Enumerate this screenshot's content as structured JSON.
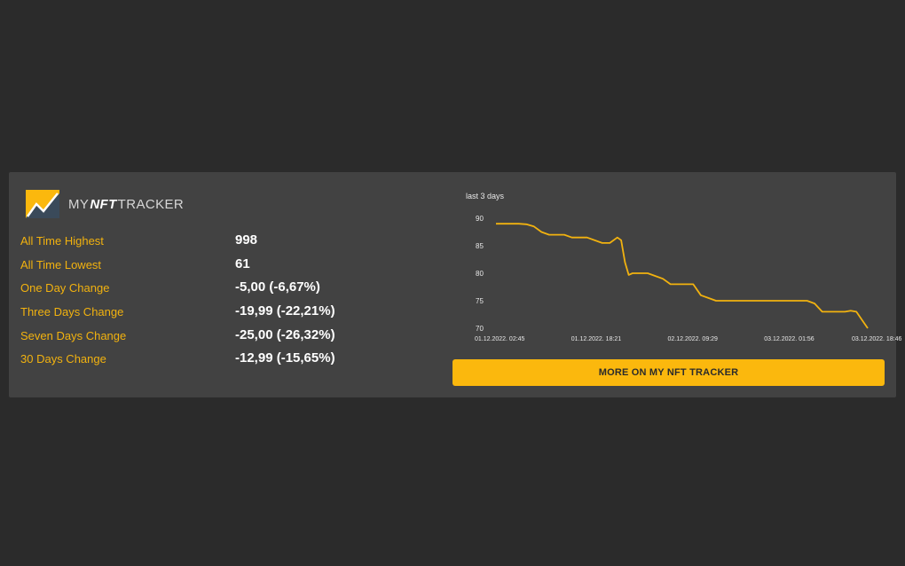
{
  "logo": {
    "prefix": "MY",
    "highlight": "NFT",
    "suffix": "TRACKER",
    "icon": "mountain-chart-logo-icon"
  },
  "stats": [
    {
      "label": "All Time Highest",
      "value": "998"
    },
    {
      "label": "All Time Lowest",
      "value": "61"
    },
    {
      "label": "One Day Change",
      "value": "-5,00 (-6,67%)"
    },
    {
      "label": "Three Days Change",
      "value": "-19,99 (-22,21%)"
    },
    {
      "label": "Seven Days Change",
      "value": "-25,00 (-26,32%)"
    },
    {
      "label": "30 Days Change",
      "value": "-12,99 (-15,65%)"
    }
  ],
  "cta": {
    "label": "MORE ON MY NFT TRACKER"
  },
  "colors": {
    "background": "#2b2b2b",
    "panel": "#424242",
    "accent": "#fbb80d",
    "label": "#f2b20f",
    "value": "#ffffff",
    "line": "#f2b20f"
  },
  "chart_data": {
    "type": "line",
    "title": "last 3 days",
    "x_tick_labels": [
      "01.12.2022. 02:45",
      "01.12.2022. 18:21",
      "02.12.2022. 09:29",
      "03.12.2022. 01:56",
      "03.12.2022. 18:46"
    ],
    "y_ticks": [
      90,
      85,
      80,
      75,
      70
    ],
    "ylim": [
      70,
      90
    ],
    "grid": false,
    "legend": "none",
    "series": [
      {
        "x": [
          0,
          4,
          6,
          8,
          10,
          12,
          14,
          16,
          18,
          20,
          24,
          28,
          30,
          32,
          33,
          34,
          35,
          36,
          38,
          40,
          42,
          44,
          46,
          48,
          50,
          52,
          54,
          56,
          58,
          60,
          62,
          64,
          70,
          76,
          80,
          82,
          84,
          86,
          88,
          90,
          92,
          93.5,
          95,
          96.5,
          98
        ],
        "y": [
          89,
          89,
          89,
          88.9,
          88.5,
          87.5,
          87,
          87,
          87,
          86.5,
          86.5,
          85.5,
          85.5,
          86.5,
          86,
          82,
          79.7,
          80,
          80,
          80,
          79.5,
          79,
          78,
          78,
          78,
          78,
          76,
          75.5,
          75,
          75,
          75,
          75,
          75,
          75,
          75,
          75,
          74.5,
          73,
          73,
          73,
          73,
          73.2,
          73,
          71.5,
          70
        ]
      }
    ]
  }
}
